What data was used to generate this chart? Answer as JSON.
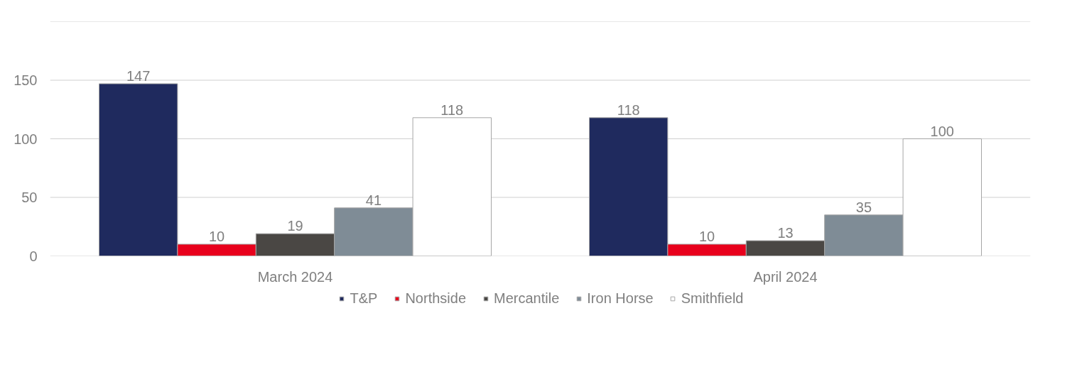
{
  "chart_data": {
    "type": "bar",
    "categories": [
      "March 2024",
      "April 2024"
    ],
    "series": [
      {
        "name": "T&P",
        "color": "#1f2a5e",
        "values": [
          147,
          118
        ]
      },
      {
        "name": "Northside",
        "color": "#e8001c",
        "values": [
          10,
          10
        ]
      },
      {
        "name": "Mercantile",
        "color": "#4a4744",
        "values": [
          19,
          13
        ]
      },
      {
        "name": "Iron Horse",
        "color": "#7f8c96",
        "values": [
          41,
          35
        ]
      },
      {
        "name": "Smithfield",
        "color": "#ffffff",
        "values": [
          118,
          100
        ]
      }
    ],
    "ylim": [
      0,
      200
    ],
    "yticks": [
      0,
      50,
      100,
      150,
      {
        "value": 200,
        "label": null
      }
    ],
    "grid": "y",
    "legend": "bottom",
    "data_labels": true
  }
}
